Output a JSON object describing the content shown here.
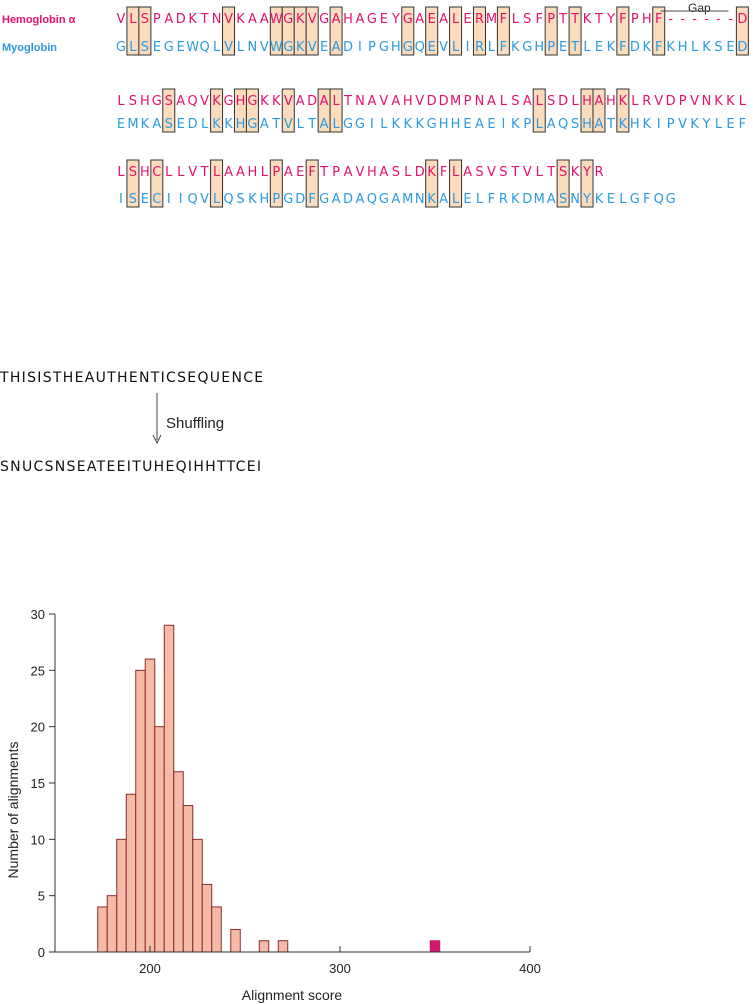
{
  "alignment": {
    "label_hemoglobin": "Hemoglobin α",
    "label_myoglobin": "Myoglobin",
    "gap_label": "Gap",
    "colors": {
      "hemoglobin": "#e3126e",
      "myoglobin": "#2a9be0",
      "box_fill": "#fbdcbc",
      "box_stroke": "#333333"
    },
    "blocks": [
      {
        "hemoglobin": "VLSPADKTNVKAAWGKVGAHAGEYGAEALERMFLSFPTTKTYFPHF------D",
        "myoglobin": "GLSEGEWQLVLNVWGKVEADIPGHGQEVLIRLFKGHPETLEKFDKFKHLKSED"
      },
      {
        "hemoglobin": "LSHGSAQVKGHGKKVADALTNAVAHVDDMPNALSALSDLHAHKLRVDPVNKKL",
        "myoglobin": "EMKASEDLKKHGATVLTALGGILKKKGHHEAEIKPLAQSHATKHKIPVKYLEF"
      },
      {
        "hemoglobin": "LSHCLLVTLAAHLPAEFTPAVHASLDKFLASVSTVLTSKYR",
        "myoglobin": "ISECIIQVLQSKHPGDFGADAQGAMNKALELFRKDMASNYKELGFQG"
      }
    ]
  },
  "shuffle": {
    "original": "THISISTHEAUTHENTICSEQUENCE",
    "arrow_label": "Shuffling",
    "shuffled": "SNUCSNSEATEEITUHEQIHHTTCEI"
  },
  "chart_data": {
    "type": "bar",
    "xlabel": "Alignment score",
    "ylabel": "Number of alignments",
    "xlim": [
      150,
      400
    ],
    "ylim": [
      0,
      30
    ],
    "x_ticks": [
      200,
      300,
      400
    ],
    "y_ticks": [
      0,
      5,
      10,
      15,
      20,
      25,
      30
    ],
    "bin_width": 5,
    "colors": {
      "bar_fill": "#f6bba6",
      "bar_stroke": "#8c2b2b",
      "authentic_fill": "#cf1a6d",
      "axis": "#333333"
    },
    "series": [
      {
        "bins": [
          {
            "x": 175,
            "value": 4
          },
          {
            "x": 180,
            "value": 5
          },
          {
            "x": 185,
            "value": 10
          },
          {
            "x": 190,
            "value": 14
          },
          {
            "x": 195,
            "value": 25
          },
          {
            "x": 200,
            "value": 26
          },
          {
            "x": 205,
            "value": 20
          },
          {
            "x": 210,
            "value": 29
          },
          {
            "x": 215,
            "value": 16
          },
          {
            "x": 220,
            "value": 13
          },
          {
            "x": 225,
            "value": 10
          },
          {
            "x": 230,
            "value": 6
          },
          {
            "x": 235,
            "value": 4
          },
          {
            "x": 240,
            "value": 0
          },
          {
            "x": 245,
            "value": 2
          },
          {
            "x": 260,
            "value": 1
          },
          {
            "x": 270,
            "value": 1
          }
        ]
      },
      {
        "bins": [
          {
            "x": 350,
            "value": 1
          }
        ]
      }
    ]
  }
}
